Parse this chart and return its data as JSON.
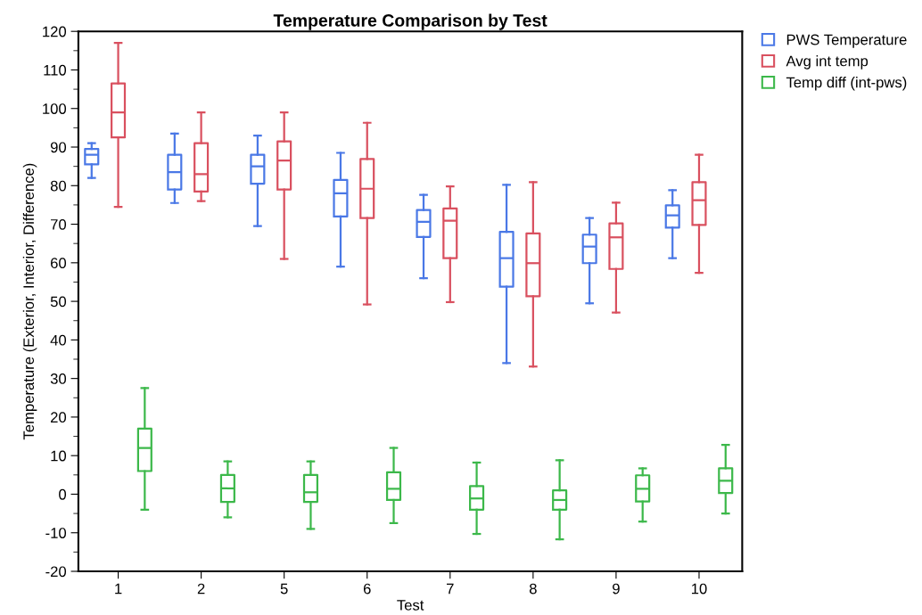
{
  "chart_data": {
    "type": "box",
    "title": "Temperature Comparison by Test",
    "xlabel": "Test",
    "ylabel": "Temperature (Exterior, Interior, Difference)",
    "categories": [
      "1",
      "2",
      "5",
      "6",
      "7",
      "8",
      "9",
      "10"
    ],
    "ylim": [
      -20,
      120
    ],
    "yticks": [
      -20,
      -10,
      0,
      10,
      20,
      30,
      40,
      50,
      60,
      70,
      80,
      90,
      100,
      110,
      120
    ],
    "grid": false,
    "legend": "top right",
    "series": [
      {
        "name": "PWS Temperature",
        "color": "#4a78e6",
        "boxes": [
          {
            "low": 82,
            "q1": 85.5,
            "median": 88,
            "q3": 89.5,
            "high": 91
          },
          {
            "low": 75.5,
            "q1": 79,
            "median": 83.5,
            "q3": 88,
            "high": 93.5
          },
          {
            "low": 69.5,
            "q1": 80.5,
            "median": 85,
            "q3": 88,
            "high": 93
          },
          {
            "low": 59,
            "q1": 72,
            "median": 78,
            "q3": 81.5,
            "high": 88.5
          },
          {
            "low": 56,
            "q1": 66.7,
            "median": 70.6,
            "q3": 73.7,
            "high": 77.6
          },
          {
            "low": 34,
            "q1": 53.8,
            "median": 61.2,
            "q3": 68,
            "high": 80.2
          },
          {
            "low": 49.5,
            "q1": 59.9,
            "median": 64.2,
            "q3": 67.3,
            "high": 71.6
          },
          {
            "low": 61.2,
            "q1": 69.1,
            "median": 72.3,
            "q3": 74.9,
            "high": 78.8
          }
        ]
      },
      {
        "name": "Avg int temp",
        "color": "#d9505f",
        "boxes": [
          {
            "low": 74.5,
            "q1": 92.5,
            "median": 99,
            "q3": 106.5,
            "high": 117
          },
          {
            "low": 76,
            "q1": 78.5,
            "median": 83,
            "q3": 91,
            "high": 99
          },
          {
            "low": 61,
            "q1": 79,
            "median": 86.5,
            "q3": 91.5,
            "high": 99
          },
          {
            "low": 49.2,
            "q1": 71.6,
            "median": 79.2,
            "q3": 86.9,
            "high": 96.3
          },
          {
            "low": 49.8,
            "q1": 61.2,
            "median": 70.9,
            "q3": 74.1,
            "high": 79.8
          },
          {
            "low": 33.1,
            "q1": 51.3,
            "median": 59.9,
            "q3": 67.6,
            "high": 80.9
          },
          {
            "low": 47.1,
            "q1": 58.4,
            "median": 66.6,
            "q3": 70.2,
            "high": 75.6
          },
          {
            "low": 57.4,
            "q1": 69.8,
            "median": 76.2,
            "q3": 80.9,
            "high": 88
          }
        ]
      },
      {
        "name": "Temp diff (int-pws)",
        "color": "#3cb84a",
        "boxes": [
          {
            "low": -4,
            "q1": 6,
            "median": 12,
            "q3": 17,
            "high": 27.5
          },
          {
            "low": -6,
            "q1": -2,
            "median": 1.5,
            "q3": 5,
            "high": 8.5
          },
          {
            "low": -9,
            "q1": -2,
            "median": 0.5,
            "q3": 5,
            "high": 8.5
          },
          {
            "low": -7.5,
            "q1": -1.5,
            "median": 1.4,
            "q3": 5.7,
            "high": 12
          },
          {
            "low": -10.3,
            "q1": -4,
            "median": -1.1,
            "q3": 2.1,
            "high": 8.2
          },
          {
            "low": -11.7,
            "q1": -4,
            "median": -1.5,
            "q3": 1,
            "high": 8.8
          },
          {
            "low": -7.1,
            "q1": -1.9,
            "median": 1.4,
            "q3": 4.9,
            "high": 6.7
          },
          {
            "low": -5,
            "q1": 0.3,
            "median": 3.5,
            "q3": 6.7,
            "high": 12.8
          }
        ]
      }
    ]
  }
}
